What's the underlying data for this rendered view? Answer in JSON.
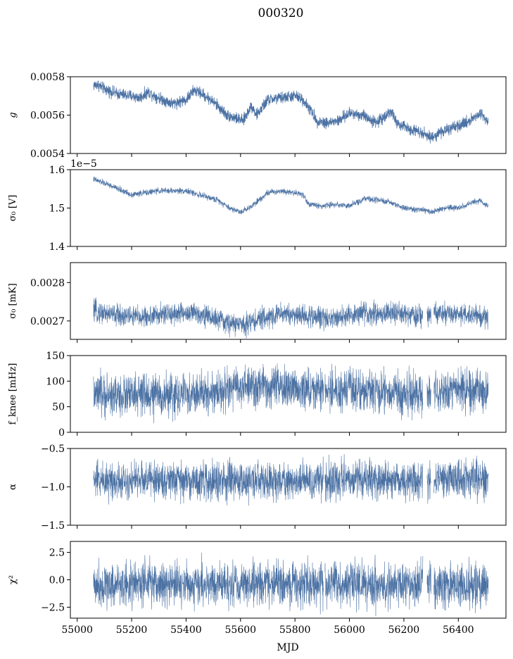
{
  "figure": {
    "title": "000320",
    "xlabel": "MJD"
  },
  "colors": {
    "series": "#4c72a4",
    "axes": "#000000",
    "background": "#ffffff"
  },
  "chart_data": [
    {
      "type": "line",
      "panel": "gain",
      "ylabel": "g",
      "ylabel_style": "italic",
      "xlim": [
        54975,
        56575
      ],
      "ylim": [
        0.0054,
        0.0058
      ],
      "yticks": [
        0.0054,
        0.0056,
        0.0058
      ],
      "ytick_labels": [
        "0.0054",
        "0.0056",
        "0.0058"
      ],
      "x_range": [
        55060,
        56510
      ],
      "profile": [
        [
          55060,
          0.005755
        ],
        [
          55075,
          0.00576
        ],
        [
          55100,
          0.005735
        ],
        [
          55150,
          0.00571
        ],
        [
          55200,
          0.0057
        ],
        [
          55230,
          0.00569
        ],
        [
          55260,
          0.00572
        ],
        [
          55300,
          0.00569
        ],
        [
          55350,
          0.00566
        ],
        [
          55400,
          0.00568
        ],
        [
          55430,
          0.00573
        ],
        [
          55460,
          0.00571
        ],
        [
          55500,
          0.00567
        ],
        [
          55550,
          0.0056
        ],
        [
          55580,
          0.005585
        ],
        [
          55610,
          0.00557
        ],
        [
          55640,
          0.00565
        ],
        [
          55660,
          0.0056
        ],
        [
          55700,
          0.00568
        ],
        [
          55750,
          0.00569
        ],
        [
          55800,
          0.0057
        ],
        [
          55830,
          0.00568
        ],
        [
          55860,
          0.00562
        ],
        [
          55880,
          0.00557
        ],
        [
          55920,
          0.00556
        ],
        [
          55960,
          0.00557
        ],
        [
          56000,
          0.00561
        ],
        [
          56050,
          0.0056
        ],
        [
          56100,
          0.00556
        ],
        [
          56150,
          0.00562
        ],
        [
          56180,
          0.00555
        ],
        [
          56220,
          0.00553
        ],
        [
          56270,
          0.00551
        ],
        [
          56300,
          0.00548
        ],
        [
          56330,
          0.00551
        ],
        [
          56400,
          0.00554
        ],
        [
          56450,
          0.00558
        ],
        [
          56480,
          0.00561
        ],
        [
          56510,
          0.00557
        ]
      ],
      "noise": 1.5e-05,
      "gaps": []
    },
    {
      "type": "line",
      "panel": "sigma0-volts",
      "ylabel": "σ₀ [V]",
      "ylim": [
        1.4e-05,
        1.6e-05
      ],
      "yticks": [
        1.4e-05,
        1.5e-05,
        1.6e-05
      ],
      "ytick_labels": [
        "1.4",
        "1.5",
        "1.6"
      ],
      "offset_label": "1e−5",
      "x_range": [
        55060,
        56510
      ],
      "profile": [
        [
          55060,
          1.575e-05
        ],
        [
          55100,
          1.565e-05
        ],
        [
          55150,
          1.55e-05
        ],
        [
          55200,
          1.535e-05
        ],
        [
          55250,
          1.54e-05
        ],
        [
          55300,
          1.545e-05
        ],
        [
          55400,
          1.545e-05
        ],
        [
          55470,
          1.53e-05
        ],
        [
          55520,
          1.52e-05
        ],
        [
          55560,
          1.5e-05
        ],
        [
          55600,
          1.49e-05
        ],
        [
          55630,
          1.5e-05
        ],
        [
          55700,
          1.54e-05
        ],
        [
          55750,
          1.545e-05
        ],
        [
          55800,
          1.54e-05
        ],
        [
          55830,
          1.535e-05
        ],
        [
          55850,
          1.51e-05
        ],
        [
          55900,
          1.505e-05
        ],
        [
          55950,
          1.51e-05
        ],
        [
          56000,
          1.505e-05
        ],
        [
          56030,
          1.515e-05
        ],
        [
          56060,
          1.525e-05
        ],
        [
          56100,
          1.52e-05
        ],
        [
          56150,
          1.515e-05
        ],
        [
          56200,
          1.5e-05
        ],
        [
          56260,
          1.495e-05
        ],
        [
          56300,
          1.49e-05
        ],
        [
          56350,
          1.5e-05
        ],
        [
          56400,
          1.5e-05
        ],
        [
          56440,
          1.51e-05
        ],
        [
          56480,
          1.52e-05
        ],
        [
          56510,
          1.505e-05
        ]
      ],
      "noise": 4e-08,
      "gaps": []
    },
    {
      "type": "line",
      "panel": "sigma0-mK",
      "ylabel": "σ₀ [mK]",
      "ylim": [
        0.002652,
        0.002852
      ],
      "yticks": [
        0.0027,
        0.0028
      ],
      "ytick_labels": [
        "0.0027",
        "0.0028"
      ],
      "x_range": [
        55060,
        56510
      ],
      "profile": [
        [
          55060,
          0.002725
        ],
        [
          55150,
          0.002715
        ],
        [
          55250,
          0.00271
        ],
        [
          55350,
          0.00272
        ],
        [
          55450,
          0.00272
        ],
        [
          55550,
          0.002695
        ],
        [
          55600,
          0.00269
        ],
        [
          55650,
          0.0027
        ],
        [
          55750,
          0.00272
        ],
        [
          55850,
          0.002712
        ],
        [
          55950,
          0.002708
        ],
        [
          56050,
          0.00272
        ],
        [
          56150,
          0.00272
        ],
        [
          56250,
          0.002712
        ],
        [
          56350,
          0.002718
        ],
        [
          56450,
          0.002715
        ],
        [
          56510,
          0.00271
        ]
      ],
      "noise": 1.4e-05,
      "gaps": [
        [
          56270,
          56285
        ],
        [
          56300,
          56310
        ]
      ]
    },
    {
      "type": "line",
      "panel": "fknee",
      "ylabel": "f_knee [mHz]",
      "ylim": [
        0,
        150
      ],
      "yticks": [
        0,
        50,
        100,
        150
      ],
      "ytick_labels": [
        "0",
        "50",
        "100",
        "150"
      ],
      "x_range": [
        55060,
        56510
      ],
      "profile": [
        [
          55060,
          72
        ],
        [
          55200,
          72
        ],
        [
          55400,
          72
        ],
        [
          55500,
          78
        ],
        [
          55600,
          88
        ],
        [
          55700,
          88
        ],
        [
          55800,
          85
        ],
        [
          55900,
          82
        ],
        [
          56000,
          82
        ],
        [
          56100,
          80
        ],
        [
          56200,
          72
        ],
        [
          56300,
          78
        ],
        [
          56400,
          82
        ],
        [
          56510,
          80
        ]
      ],
      "noise": 20,
      "gaps": [
        [
          55905,
          55910
        ],
        [
          56270,
          56285
        ],
        [
          56300,
          56310
        ]
      ]
    },
    {
      "type": "line",
      "panel": "alpha",
      "ylabel": "α",
      "ylim": [
        -1.5,
        -0.5
      ],
      "yticks": [
        -1.5,
        -1.0,
        -0.5
      ],
      "ytick_labels": [
        "−1.5",
        "−1.0",
        "−0.5"
      ],
      "x_range": [
        55060,
        56510
      ],
      "profile": [
        [
          55060,
          -0.91
        ],
        [
          55300,
          -0.91
        ],
        [
          55500,
          -0.93
        ],
        [
          55800,
          -0.92
        ],
        [
          56000,
          -0.91
        ],
        [
          56200,
          -0.9
        ],
        [
          56510,
          -0.91
        ]
      ],
      "noise": 0.12,
      "gaps": [
        [
          55905,
          55910
        ],
        [
          56270,
          56285
        ],
        [
          56300,
          56310
        ]
      ]
    },
    {
      "type": "line",
      "panel": "chi2",
      "ylabel": "χ²",
      "ylim": [
        -3.5,
        3.5
      ],
      "yticks": [
        -2.5,
        0.0,
        2.5
      ],
      "ytick_labels": [
        "−2.5",
        "0.0",
        "2.5"
      ],
      "xticks": [
        55000,
        55200,
        55400,
        55600,
        55800,
        56000,
        56200,
        56400
      ],
      "xtick_labels": [
        "55000",
        "55200",
        "55400",
        "55600",
        "55800",
        "56000",
        "56200",
        "56400"
      ],
      "x_range": [
        55060,
        56510
      ],
      "profile": [
        [
          55060,
          -0.4
        ],
        [
          55500,
          -0.4
        ],
        [
          56000,
          -0.45
        ],
        [
          56510,
          -0.4
        ]
      ],
      "noise": 1.0,
      "gaps": [
        [
          55905,
          55910
        ],
        [
          56270,
          56285
        ],
        [
          56300,
          56310
        ]
      ]
    }
  ]
}
